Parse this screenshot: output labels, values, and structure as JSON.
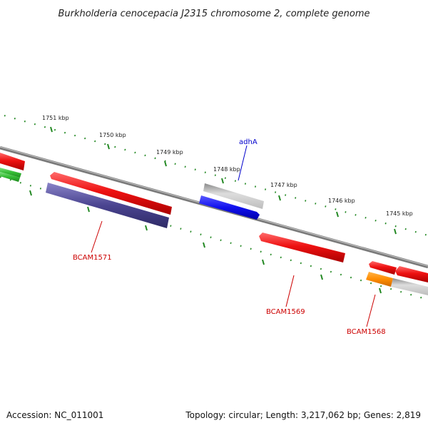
{
  "title": "Burkholderia cenocepacia J2315 chromosome 2, complete genome",
  "footer": {
    "accession": "Accession: NC_011001",
    "summary": "Topology: circular; Length: 3,217,062 bp; Genes: 2,819"
  },
  "ticks": [
    "1751 kbp",
    "1750 kbp",
    "1749 kbp",
    "1748 kbp",
    "1747 kbp",
    "1746 kbp",
    "1745 kbp"
  ],
  "gene_labels": [
    {
      "name": "adhA",
      "color": "#0000cc"
    },
    {
      "name": "BCAM1571",
      "color": "#cc0000"
    },
    {
      "name": "BCAM1569",
      "color": "#cc0000"
    },
    {
      "name": "BCAM1568",
      "color": "#cc0000"
    }
  ],
  "colors": {
    "backbone": "#7a7a7a",
    "tick": "#228822",
    "forward_gene": "#ee1111",
    "reverse_gene": "#4a4490",
    "adhA_gene": "#1010ee",
    "pseudo_gene": "#bbbbbb",
    "misc_gene": "#ff8c00",
    "rna_gene": "#33bb33"
  }
}
